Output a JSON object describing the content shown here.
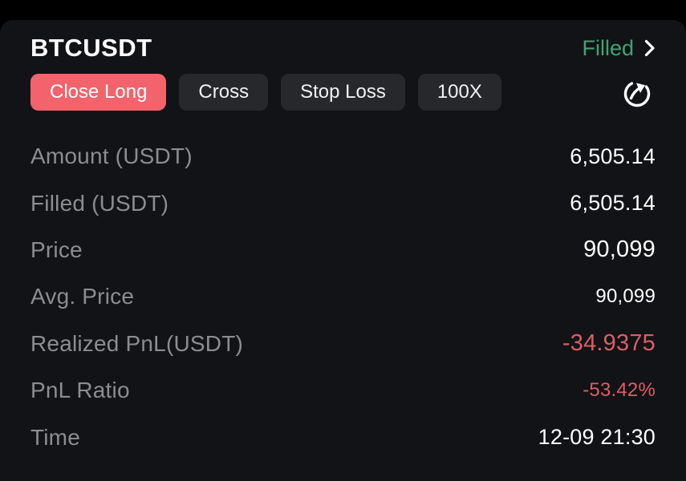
{
  "header": {
    "symbol": "BTCUSDT",
    "status": "Filled"
  },
  "tags": [
    {
      "label": "Close Long",
      "variant": "danger"
    },
    {
      "label": "Cross",
      "variant": "default"
    },
    {
      "label": "Stop Loss",
      "variant": "default"
    },
    {
      "label": "100X",
      "variant": "default"
    }
  ],
  "icons": {
    "chevron_right": "chevron-right-icon",
    "share": "share-order-icon"
  },
  "rows": [
    {
      "label": "Amount (USDT)",
      "value": "6,505.14",
      "value_color": "default",
      "value_size": "md"
    },
    {
      "label": "Filled (USDT)",
      "value": "6,505.14",
      "value_color": "default",
      "value_size": "md"
    },
    {
      "label": "Price",
      "value": "90,099",
      "value_color": "default",
      "value_size": "lg"
    },
    {
      "label": "Avg. Price",
      "value": "90,099",
      "value_color": "default",
      "value_size": "sm"
    },
    {
      "label": "Realized PnL(USDT)",
      "value": "-34.9375",
      "value_color": "loss",
      "value_size": "lg"
    },
    {
      "label": "PnL Ratio",
      "value": "-53.42%",
      "value_color": "loss",
      "value_size": "sm"
    },
    {
      "label": "Time",
      "value": "12-09 21:30",
      "value_color": "default",
      "value_size": "md"
    }
  ],
  "colors": {
    "sheet_bg": "#121316",
    "tag_bg": "#27282c",
    "close_long_bg": "#f2636c",
    "filled_green": "#3fa474",
    "loss_red": "#dd5d66",
    "label_gray": "#8d8d91",
    "value_white": "#ffffff"
  }
}
